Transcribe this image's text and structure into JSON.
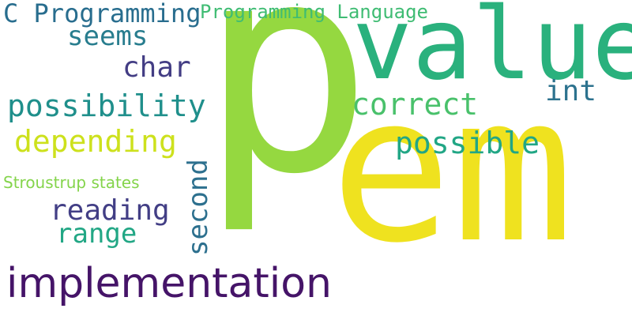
{
  "words": [
    {
      "key": "p",
      "text": "p",
      "color": "#95d840"
    },
    {
      "key": "em",
      "text": "em",
      "color": "#efe21f"
    },
    {
      "key": "value",
      "text": "value",
      "color": "#2ab17d"
    },
    {
      "key": "implementation",
      "text": "implementation",
      "color": "#451468"
    },
    {
      "key": "c_programming",
      "text": "C Programming",
      "color": "#286d8e"
    },
    {
      "key": "programming_language",
      "text": "Programming Language",
      "color": "#3fbc73"
    },
    {
      "key": "seems",
      "text": "seems",
      "color": "#287d8e"
    },
    {
      "key": "char",
      "text": "char",
      "color": "#433d84"
    },
    {
      "key": "possibility",
      "text": "possibility",
      "color": "#1f8f8b"
    },
    {
      "key": "correct",
      "text": "correct",
      "color": "#49c16b"
    },
    {
      "key": "int",
      "text": "int",
      "color": "#2c728e"
    },
    {
      "key": "depending",
      "text": "depending",
      "color": "#cde11d"
    },
    {
      "key": "possible",
      "text": "possible",
      "color": "#21a685"
    },
    {
      "key": "second",
      "text": "second",
      "color": "#2d708e"
    },
    {
      "key": "stroustrup_states",
      "text": "Stroustrup states",
      "color": "#84d44b"
    },
    {
      "key": "reading",
      "text": "reading",
      "color": "#423e85"
    },
    {
      "key": "range",
      "text": "range",
      "color": "#22a785"
    }
  ]
}
